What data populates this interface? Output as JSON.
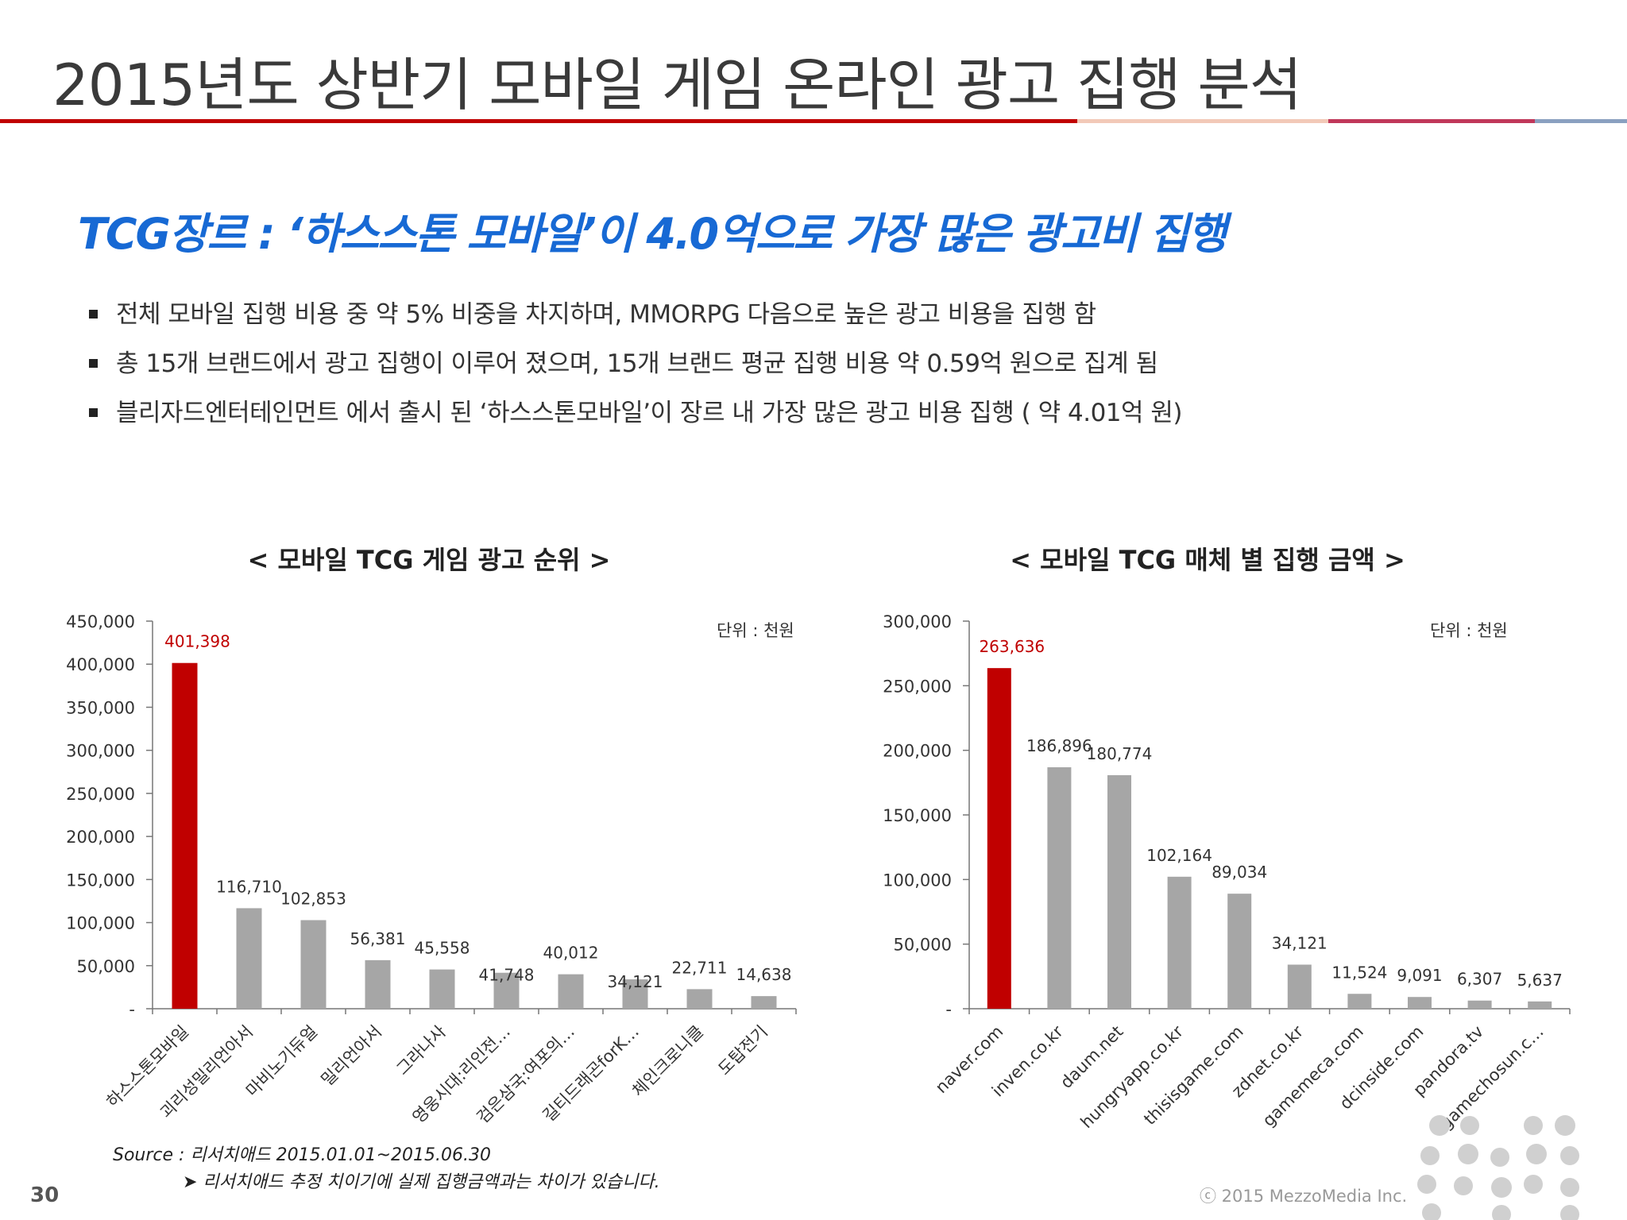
{
  "header": {
    "title": "2015년도 상반기 모바일 게임 온라인 광고 집행 분석"
  },
  "subtitle": "TCG장르 : ‘하스스톤 모바일’이 4.0억으로 가장 많은 광고비 집행",
  "bullets": [
    "전체 모바일 집행 비용 중 약  5% 비중을 차지하며, MMORPG 다음으로 높은 광고 비용을 집행 함",
    "총 15개 브랜드에서 광고 집행이 이루어 졌으며, 15개 브랜드 평균 집행 비용 약 0.59억 원으로 집계 됨",
    "블리자드엔터테인먼트 에서 출시 된 ‘하스스톤모바일’이 장르 내 가장 많은 광고 비용 집행 ( 약 4.01억 원)"
  ],
  "colors": {
    "highlight": "#c00000",
    "bar": "#a6a6a6",
    "subtitle": "#1769d4"
  },
  "chart_data": [
    {
      "type": "bar",
      "title": "< 모바일 TCG 게임 광고 순위 >",
      "unit": "단위 : 천원",
      "categories": [
        "하스스톤모바일",
        "괴리성밀리언아서",
        "마비노기듀얼",
        "밀리언아서",
        "그라나사",
        "영웅시대:리인전…",
        "검은삼국:여포의…",
        "길티드래곤forK…",
        "체인크로니클",
        "도탑전기"
      ],
      "values": [
        401398,
        116710,
        102853,
        56381,
        45558,
        41748,
        40012,
        34121,
        22711,
        14638
      ],
      "value_labels": [
        "401,398",
        "116,710",
        "102,853",
        "56,381",
        "45,558",
        "41,748",
        "40,012",
        "34,121",
        "22,711",
        "14,638"
      ],
      "ylim": [
        0,
        450000
      ],
      "yticks": [
        0,
        50000,
        100000,
        150000,
        200000,
        250000,
        300000,
        350000,
        400000,
        450000
      ],
      "ytick_labels": [
        "-",
        "50,000",
        "100,000",
        "150,000",
        "200,000",
        "250,000",
        "300,000",
        "350,000",
        "400,000",
        "450,000"
      ],
      "highlight_index": 0
    },
    {
      "type": "bar",
      "title": "< 모바일 TCG 매체 별 집행 금액 >",
      "unit": "단위 : 천원",
      "categories": [
        "naver.com",
        "inven.co.kr",
        "daum.net",
        "hungryapp.co.kr",
        "thisisgame.com",
        "zdnet.co.kr",
        "gamemeca.com",
        "dcinside.com",
        "pandora.tv",
        "gamechosun.c…"
      ],
      "values": [
        263636,
        186896,
        180774,
        102164,
        89034,
        34121,
        11524,
        9091,
        6307,
        5637
      ],
      "value_labels": [
        "263,636",
        "186,896",
        "180,774",
        "102,164",
        "89,034",
        "34,121",
        "11,524",
        "9,091",
        "6,307",
        "5,637"
      ],
      "ylim": [
        0,
        300000
      ],
      "yticks": [
        0,
        50000,
        100000,
        150000,
        200000,
        250000,
        300000
      ],
      "ytick_labels": [
        "-",
        "50,000",
        "100,000",
        "150,000",
        "200,000",
        "250,000",
        "300,000"
      ],
      "highlight_index": 0
    }
  ],
  "footer": {
    "source": "Source : 리서치애드 2015.01.01~2015.06.30",
    "note": "➤ 리서치애드 추정 치이기에 실제 집행금액과는 차이가 있습니다.",
    "page_number": "30",
    "copyright": "ⓒ 2015 MezzoMedia Inc."
  }
}
